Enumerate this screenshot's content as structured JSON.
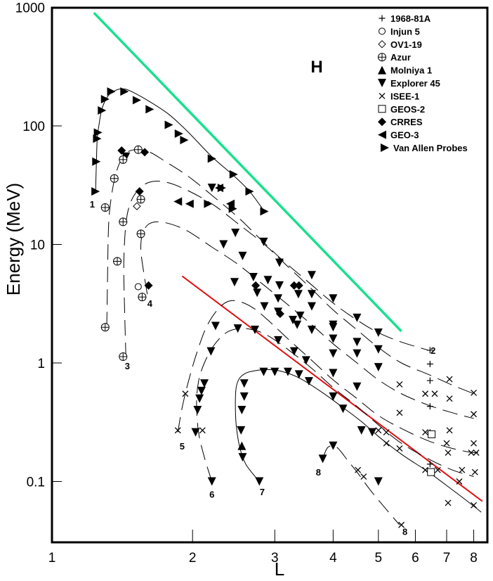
{
  "chart_data": {
    "type": "scatter",
    "title": "",
    "panel_label": "H",
    "xlabel": "L",
    "ylabel": "Energy (MeV)",
    "xscale": "log",
    "yscale": "log",
    "xlim": [
      1,
      8.6
    ],
    "ylim": [
      0.031,
      1000
    ],
    "x_ticks": [
      1,
      2,
      3,
      4,
      5,
      6,
      7,
      8
    ],
    "x_tick_labels": [
      "1",
      "2",
      "3",
      "4",
      "5",
      "6",
      "7",
      "8"
    ],
    "y_ticks": [
      0.1,
      1,
      10,
      100,
      1000
    ],
    "y_tick_labels": [
      "0.1",
      "1",
      "10",
      "100",
      "1000"
    ],
    "grid": false,
    "legend_position": "top-right",
    "legend": [
      {
        "name": "1968-81A",
        "marker": "plus"
      },
      {
        "name": "Injun 5",
        "marker": "circle"
      },
      {
        "name": "OV1-19",
        "marker": "diamond-open"
      },
      {
        "name": "Azur",
        "marker": "circle-plus"
      },
      {
        "name": "Molniya 1",
        "marker": "triangle-up"
      },
      {
        "name": "Explorer 45",
        "marker": "triangle-down"
      },
      {
        "name": "ISEE-1",
        "marker": "cross"
      },
      {
        "name": "GEOS-2",
        "marker": "square-open"
      },
      {
        "name": "CRRES",
        "marker": "diamond"
      },
      {
        "name": "GEO-3",
        "marker": "triangle-left"
      },
      {
        "name": "Van Allen Probes",
        "marker": "triangle-right"
      }
    ],
    "reference_lines": [
      {
        "name": "green-line",
        "color": "#19e08e",
        "x": [
          1.23,
          5.6
        ],
        "y": [
          900,
          1.85
        ]
      },
      {
        "name": "red-line",
        "color": "#e01010",
        "x": [
          1.9,
          8.35
        ],
        "y": [
          5.4,
          0.068
        ]
      }
    ],
    "curves": [
      {
        "label": "1",
        "dashed": false,
        "label_at": [
          1.22,
          22
        ],
        "x": [
          1.24,
          1.245,
          1.25,
          1.26,
          1.28,
          1.32,
          1.37,
          1.43,
          1.5,
          1.62,
          1.78,
          1.95,
          2.2,
          2.45,
          2.65,
          2.85
        ],
        "y": [
          28,
          50,
          78,
          100,
          140,
          180,
          200,
          205,
          190,
          160,
          125,
          90,
          55,
          38,
          28,
          19
        ]
      },
      {
        "label": "2",
        "dashed": true,
        "label_at": [
          6.55,
          1.28
        ],
        "x": [
          1.31,
          1.315,
          1.32,
          1.33,
          1.36,
          1.4,
          1.45,
          1.52,
          1.62,
          1.75,
          1.95,
          2.2,
          2.5,
          2.8,
          3.1,
          3.5,
          4.0,
          4.5,
          5.0,
          5.6,
          6.4
        ],
        "y": [
          2.0,
          5,
          12,
          20,
          35,
          50,
          60,
          63,
          60,
          50,
          38,
          26,
          17,
          11,
          7.5,
          5,
          3.2,
          2.3,
          1.8,
          1.5,
          1.28
        ]
      },
      {
        "label": "3",
        "dashed": true,
        "label_at": [
          1.45,
          0.95
        ],
        "x": [
          1.44,
          1.43,
          1.425,
          1.44,
          1.47,
          1.52,
          1.6,
          1.72,
          1.9,
          2.2,
          2.5,
          2.85,
          3.2,
          3.6,
          4.0,
          4.5,
          5.0,
          5.6,
          6.4,
          7.2,
          8.0
        ],
        "y": [
          1.1,
          3,
          7,
          15,
          22,
          28,
          33,
          34,
          30,
          22,
          15,
          10,
          6.5,
          4.2,
          2.8,
          1.9,
          1.35,
          1.0,
          0.8,
          0.65,
          0.55
        ]
      },
      {
        "label": "4",
        "dashed": true,
        "label_at": [
          1.62,
          3.2
        ],
        "x": [
          1.6,
          1.57,
          1.55,
          1.56,
          1.6,
          1.67,
          1.78,
          1.95,
          2.2,
          2.5,
          2.85,
          3.2,
          3.6,
          4.0,
          4.5,
          5.0,
          5.6,
          6.4,
          7.2,
          8.0
        ],
        "y": [
          3.8,
          6,
          9,
          12,
          14.5,
          15.5,
          15,
          13,
          9.5,
          6.8,
          4.5,
          3.1,
          2.1,
          1.45,
          1.0,
          0.72,
          0.55,
          0.44,
          0.38,
          0.34
        ]
      },
      {
        "label": "5",
        "dashed": true,
        "label_at": [
          1.9,
          0.2
        ],
        "x": [
          1.86,
          1.9,
          1.96,
          2.04,
          2.14,
          2.26,
          2.38,
          2.52,
          2.7,
          2.9,
          3.2,
          3.6,
          4.0,
          4.5,
          5.0,
          5.6,
          6.4,
          7.2,
          8.0,
          8.3
        ],
        "y": [
          0.26,
          0.42,
          0.7,
          1.2,
          2.0,
          2.8,
          3.3,
          3.3,
          2.9,
          2.3,
          1.6,
          1.05,
          0.72,
          0.5,
          0.36,
          0.28,
          0.22,
          0.19,
          0.175,
          0.18
        ]
      },
      {
        "label": "6",
        "dashed": true,
        "label_at": [
          2.2,
          0.078
        ],
        "x": [
          2.2,
          2.12,
          2.06,
          2.04,
          2.06,
          2.12,
          2.22,
          2.36,
          2.52,
          2.7,
          2.9,
          3.2,
          3.6,
          4.0,
          4.5,
          5.0,
          5.6,
          6.4,
          7.2,
          8.0
        ],
        "y": [
          0.1,
          0.16,
          0.26,
          0.45,
          0.7,
          1.0,
          1.4,
          1.8,
          1.95,
          1.9,
          1.7,
          1.3,
          0.9,
          0.62,
          0.43,
          0.3,
          0.21,
          0.155,
          0.125,
          0.11
        ]
      },
      {
        "label": "7",
        "dashed": false,
        "label_at": [
          2.82,
          0.082
        ],
        "x": [
          2.78,
          2.6,
          2.52,
          2.48,
          2.47,
          2.48,
          2.52,
          2.6,
          2.72,
          2.88,
          3.1,
          3.4,
          3.8,
          4.2,
          4.6,
          5.0,
          5.6,
          6.4,
          7.2,
          8.0,
          8.3
        ],
        "y": [
          0.1,
          0.14,
          0.2,
          0.3,
          0.45,
          0.62,
          0.74,
          0.82,
          0.86,
          0.88,
          0.85,
          0.74,
          0.56,
          0.42,
          0.32,
          0.24,
          0.17,
          0.12,
          0.085,
          0.062,
          0.055
        ]
      },
      {
        "label": "8",
        "dashed": true,
        "label_at": [
          3.72,
          0.12
        ],
        "x": [
          3.8,
          3.88,
          3.98,
          4.1,
          4.3,
          4.5,
          4.8,
          5.2,
          5.55
        ],
        "y": [
          0.155,
          0.19,
          0.2,
          0.19,
          0.15,
          0.12,
          0.085,
          0.058,
          0.043
        ]
      }
    ],
    "curve_label_8b_at": [
      5.7,
      0.038
    ],
    "markers": {
      "triangle-right": [
        [
          1.24,
          28
        ],
        [
          1.245,
          50
        ],
        [
          1.25,
          78
        ],
        [
          1.255,
          88
        ],
        [
          1.28,
          135
        ],
        [
          1.3,
          168
        ],
        [
          1.34,
          195
        ],
        [
          1.43,
          195
        ],
        [
          1.52,
          165
        ],
        [
          1.62,
          138
        ],
        [
          1.78,
          102
        ],
        [
          1.87,
          86
        ],
        [
          1.92,
          76
        ],
        [
          2.2,
          53
        ],
        [
          2.45,
          39
        ],
        [
          2.65,
          28
        ],
        [
          2.85,
          19
        ],
        [
          2.16,
          22
        ],
        [
          2.31,
          30
        ],
        [
          2.44,
          20
        ]
      ],
      "triangle-down": [
        [
          1.44,
          55
        ],
        [
          2.2,
          30
        ],
        [
          2.47,
          12.5
        ],
        [
          2.84,
          10.5
        ],
        [
          2.33,
          10
        ],
        [
          2.56,
          8
        ],
        [
          3.07,
          7
        ],
        [
          2.9,
          5
        ],
        [
          3.07,
          4.5
        ],
        [
          3.6,
          5.5
        ],
        [
          4.0,
          3.5
        ],
        [
          4.5,
          2.4
        ],
        [
          5.0,
          1.8
        ],
        [
          2.7,
          5.3
        ],
        [
          3.37,
          3.8
        ],
        [
          3.6,
          3
        ],
        [
          3.28,
          2.3
        ],
        [
          4.0,
          2.1
        ],
        [
          4.5,
          1.5
        ],
        [
          5.0,
          1.3
        ],
        [
          2.46,
          4.8
        ],
        [
          2.75,
          3.9
        ],
        [
          3.05,
          3.5
        ],
        [
          3.6,
          3.8
        ],
        [
          3.4,
          2.5
        ],
        [
          4.0,
          2.0
        ],
        [
          4.0,
          1.6
        ],
        [
          2.85,
          3.0
        ],
        [
          3.05,
          2.7
        ],
        [
          3.35,
          2.1
        ],
        [
          3.6,
          1.9
        ],
        [
          4.0,
          1.2
        ],
        [
          4.5,
          1.2
        ],
        [
          5.0,
          0.92
        ],
        [
          2.5,
          1.95
        ],
        [
          2.72,
          1.9
        ],
        [
          3.05,
          1.55
        ],
        [
          3.3,
          1.25
        ],
        [
          3.5,
          1.05
        ],
        [
          4.0,
          0.82
        ],
        [
          4.5,
          0.63
        ],
        [
          4.85,
          0.26
        ],
        [
          5.0,
          0.1
        ],
        [
          2.24,
          2.05
        ],
        [
          2.19,
          1.25
        ],
        [
          2.12,
          0.67
        ],
        [
          2.09,
          0.58
        ],
        [
          2.07,
          0.5
        ],
        [
          2.05,
          0.4
        ],
        [
          2.03,
          0.26
        ],
        [
          2.2,
          0.1
        ],
        [
          2.84,
          0.84
        ],
        [
          3.0,
          0.84
        ],
        [
          3.2,
          0.84
        ],
        [
          3.38,
          0.8
        ],
        [
          3.55,
          0.7
        ],
        [
          2.58,
          0.67
        ],
        [
          2.58,
          0.52
        ],
        [
          2.55,
          0.4
        ],
        [
          2.54,
          0.27
        ],
        [
          2.56,
          0.16
        ],
        [
          2.78,
          0.1
        ],
        [
          3.8,
          0.155
        ],
        [
          4.0,
          0.2
        ],
        [
          4.0,
          0.52
        ],
        [
          4.2,
          0.41
        ],
        [
          4.6,
          0.27
        ]
      ],
      "triangle-up": [
        [
          2.55,
          0.2
        ]
      ],
      "triangle-left": [
        [
          1.86,
          23
        ],
        [
          1.97,
          22
        ],
        [
          2.28,
          30
        ],
        [
          2.41,
          22
        ]
      ],
      "diamond": [
        [
          1.41,
          62
        ],
        [
          1.58,
          60
        ],
        [
          1.54,
          28
        ],
        [
          1.61,
          4.5
        ],
        [
          2.73,
          4.5
        ],
        [
          3.08,
          2.6
        ],
        [
          3.3,
          4.5
        ],
        [
          3.38,
          4.5
        ]
      ],
      "circle-plus": [
        [
          1.3,
          20.5
        ],
        [
          1.36,
          36
        ],
        [
          1.42,
          52
        ],
        [
          1.53,
          63
        ],
        [
          1.42,
          15.5
        ],
        [
          1.38,
          7.2
        ],
        [
          1.55,
          24
        ],
        [
          1.55,
          12.3
        ],
        [
          1.3,
          2.0
        ],
        [
          1.42,
          1.13
        ],
        [
          1.56,
          3.6
        ]
      ],
      "circle": [
        [
          1.53,
          4.4
        ]
      ],
      "diamond-open": [
        [
          1.52,
          21
        ]
      ],
      "cross": [
        [
          1.86,
          0.27
        ],
        [
          1.93,
          0.55
        ],
        [
          2.1,
          0.27
        ],
        [
          5.55,
          0.66
        ],
        [
          5.55,
          0.38
        ],
        [
          6.3,
          0.55
        ],
        [
          6.6,
          0.55
        ],
        [
          7.1,
          0.73
        ],
        [
          6.3,
          0.26
        ],
        [
          7.1,
          0.5
        ],
        [
          7.1,
          0.27
        ],
        [
          8.0,
          0.56
        ],
        [
          8.0,
          0.37
        ],
        [
          8.0,
          0.21
        ],
        [
          7.0,
          0.21
        ],
        [
          7.05,
          0.175
        ],
        [
          7.55,
          0.125
        ],
        [
          7.9,
          0.175
        ],
        [
          8.1,
          0.175
        ],
        [
          8.05,
          0.12
        ],
        [
          7.45,
          0.1
        ],
        [
          5.0,
          0.27
        ],
        [
          5.2,
          0.21
        ],
        [
          5.55,
          0.19
        ],
        [
          6.3,
          0.125
        ],
        [
          6.7,
          0.125
        ],
        [
          7.05,
          0.066
        ],
        [
          8.0,
          0.063
        ],
        [
          4.52,
          0.125
        ],
        [
          4.65,
          0.11
        ],
        [
          5.6,
          0.043
        ],
        [
          5.2,
          0.26
        ]
      ],
      "plus": [
        [
          6.45,
          1.28
        ],
        [
          6.45,
          0.98
        ],
        [
          6.45,
          0.71
        ],
        [
          6.45,
          0.43
        ],
        [
          6.45,
          0.26
        ],
        [
          6.45,
          0.14
        ]
      ],
      "square-open": [
        [
          6.5,
          0.25
        ],
        [
          6.48,
          0.12
        ]
      ]
    }
  }
}
